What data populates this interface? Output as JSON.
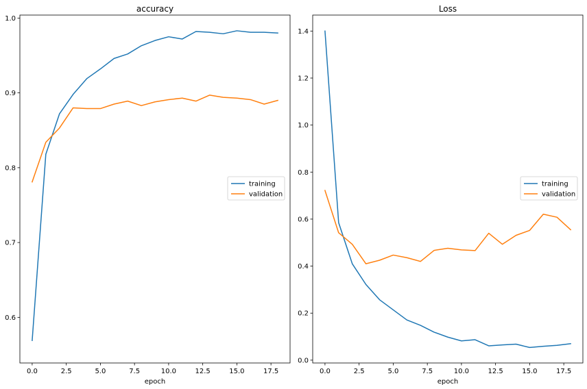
{
  "colors": {
    "training": "#1f77b4",
    "validation": "#ff7f0e",
    "axes": "#000000",
    "legend_border": "#cccccc"
  },
  "chart_data": [
    {
      "type": "line",
      "title": "accuracy",
      "xlabel": "epoch",
      "ylabel": "",
      "xlim": [
        -0.9,
        18.9
      ],
      "ylim": [
        0.539,
        1.004
      ],
      "xticks": [
        0.0,
        2.5,
        5.0,
        7.5,
        10.0,
        12.5,
        15.0,
        17.5
      ],
      "xtick_labels": [
        "0.0",
        "2.5",
        "5.0",
        "7.5",
        "10.0",
        "12.5",
        "15.0",
        "17.5"
      ],
      "yticks": [
        0.6,
        0.7,
        0.8,
        0.9,
        1.0
      ],
      "ytick_labels": [
        "0.6",
        "0.7",
        "0.8",
        "0.9",
        "1.0"
      ],
      "grid": false,
      "legend_position": "center-right",
      "x": [
        0,
        1,
        2,
        3,
        4,
        5,
        6,
        7,
        8,
        9,
        10,
        11,
        12,
        13,
        14,
        15,
        16,
        17,
        18
      ],
      "series": [
        {
          "name": "training",
          "values": [
            0.569,
            0.818,
            0.872,
            0.898,
            0.919,
            0.932,
            0.946,
            0.952,
            0.963,
            0.97,
            0.975,
            0.972,
            0.982,
            0.981,
            0.979,
            0.983,
            0.981,
            0.981,
            0.98
          ]
        },
        {
          "name": "validation",
          "values": [
            0.781,
            0.834,
            0.853,
            0.88,
            0.879,
            0.879,
            0.885,
            0.889,
            0.883,
            0.888,
            0.891,
            0.893,
            0.889,
            0.897,
            0.894,
            0.893,
            0.891,
            0.885,
            0.89
          ]
        }
      ]
    },
    {
      "type": "line",
      "title": "Loss",
      "xlabel": "epoch",
      "ylabel": "",
      "xlim": [
        -0.9,
        18.9
      ],
      "ylim": [
        -0.012,
        1.468
      ],
      "xticks": [
        0.0,
        2.5,
        5.0,
        7.5,
        10.0,
        12.5,
        15.0,
        17.5
      ],
      "xtick_labels": [
        "0.0",
        "2.5",
        "5.0",
        "7.5",
        "10.0",
        "12.5",
        "15.0",
        "17.5"
      ],
      "yticks": [
        0.0,
        0.2,
        0.4,
        0.6,
        0.8,
        1.0,
        1.2,
        1.4
      ],
      "ytick_labels": [
        "0.0",
        "0.2",
        "0.4",
        "0.6",
        "0.8",
        "1.0",
        "1.2",
        "1.4"
      ],
      "grid": false,
      "legend_position": "center-right",
      "x": [
        0,
        1,
        2,
        3,
        4,
        5,
        6,
        7,
        8,
        9,
        10,
        11,
        12,
        13,
        14,
        15,
        16,
        17,
        18
      ],
      "series": [
        {
          "name": "training",
          "values": [
            1.4,
            0.585,
            0.41,
            0.322,
            0.257,
            0.214,
            0.171,
            0.148,
            0.119,
            0.098,
            0.082,
            0.087,
            0.061,
            0.065,
            0.068,
            0.054,
            0.059,
            0.063,
            0.07
          ]
        },
        {
          "name": "validation",
          "values": [
            0.722,
            0.542,
            0.493,
            0.41,
            0.425,
            0.447,
            0.436,
            0.42,
            0.467,
            0.476,
            0.469,
            0.466,
            0.54,
            0.493,
            0.531,
            0.552,
            0.621,
            0.608,
            0.555
          ]
        }
      ]
    }
  ]
}
